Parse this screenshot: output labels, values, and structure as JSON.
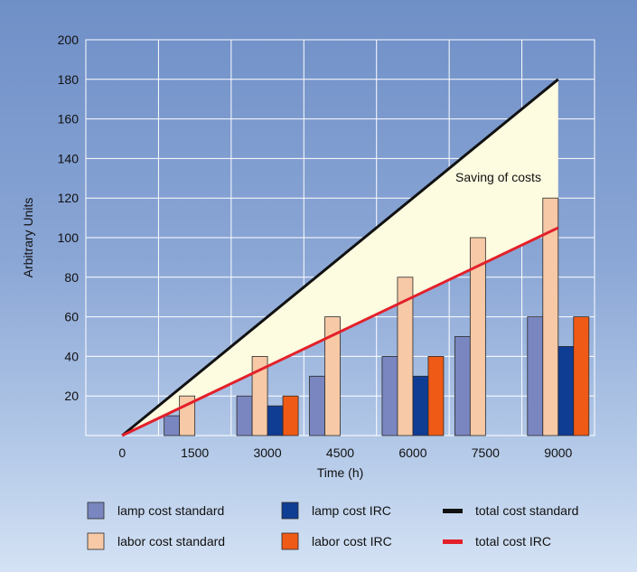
{
  "chart_data": {
    "type": "bar",
    "categories": [
      "0",
      "1500",
      "3000",
      "4500",
      "6000",
      "7500",
      "9000"
    ],
    "x": [
      0,
      1500,
      3000,
      4500,
      6000,
      7500,
      9000
    ],
    "xlabel": "Time (h)",
    "ylabel": "Arbitrary Units",
    "ylim": [
      0,
      200
    ],
    "yticks": [
      20,
      40,
      60,
      80,
      100,
      120,
      140,
      160,
      180,
      200
    ],
    "grid": true,
    "bar_series": [
      {
        "name": "lamp cost standard",
        "color": "#7a86c0",
        "values": [
          null,
          10,
          20,
          30,
          40,
          50,
          60
        ]
      },
      {
        "name": "labor cost standard",
        "color": "#f7c9a6",
        "values": [
          null,
          20,
          40,
          60,
          80,
          100,
          120
        ]
      },
      {
        "name": "lamp cost IRC",
        "color": "#0f3d94",
        "values": [
          null,
          null,
          15,
          null,
          30,
          null,
          45
        ]
      },
      {
        "name": "labor cost IRC",
        "color": "#ef5a16",
        "values": [
          null,
          null,
          20,
          null,
          40,
          null,
          60
        ]
      }
    ],
    "line_series": [
      {
        "name": "total cost standard",
        "color": "#111111",
        "x": [
          0,
          9000
        ],
        "y": [
          0,
          180
        ]
      },
      {
        "name": "total cost IRC",
        "color": "#e3202a",
        "x": [
          0,
          9000
        ],
        "y": [
          0,
          105
        ]
      }
    ],
    "annotation": "Saving of costs",
    "legend_position": "bottom",
    "fill_color": "#fdfbe0"
  }
}
